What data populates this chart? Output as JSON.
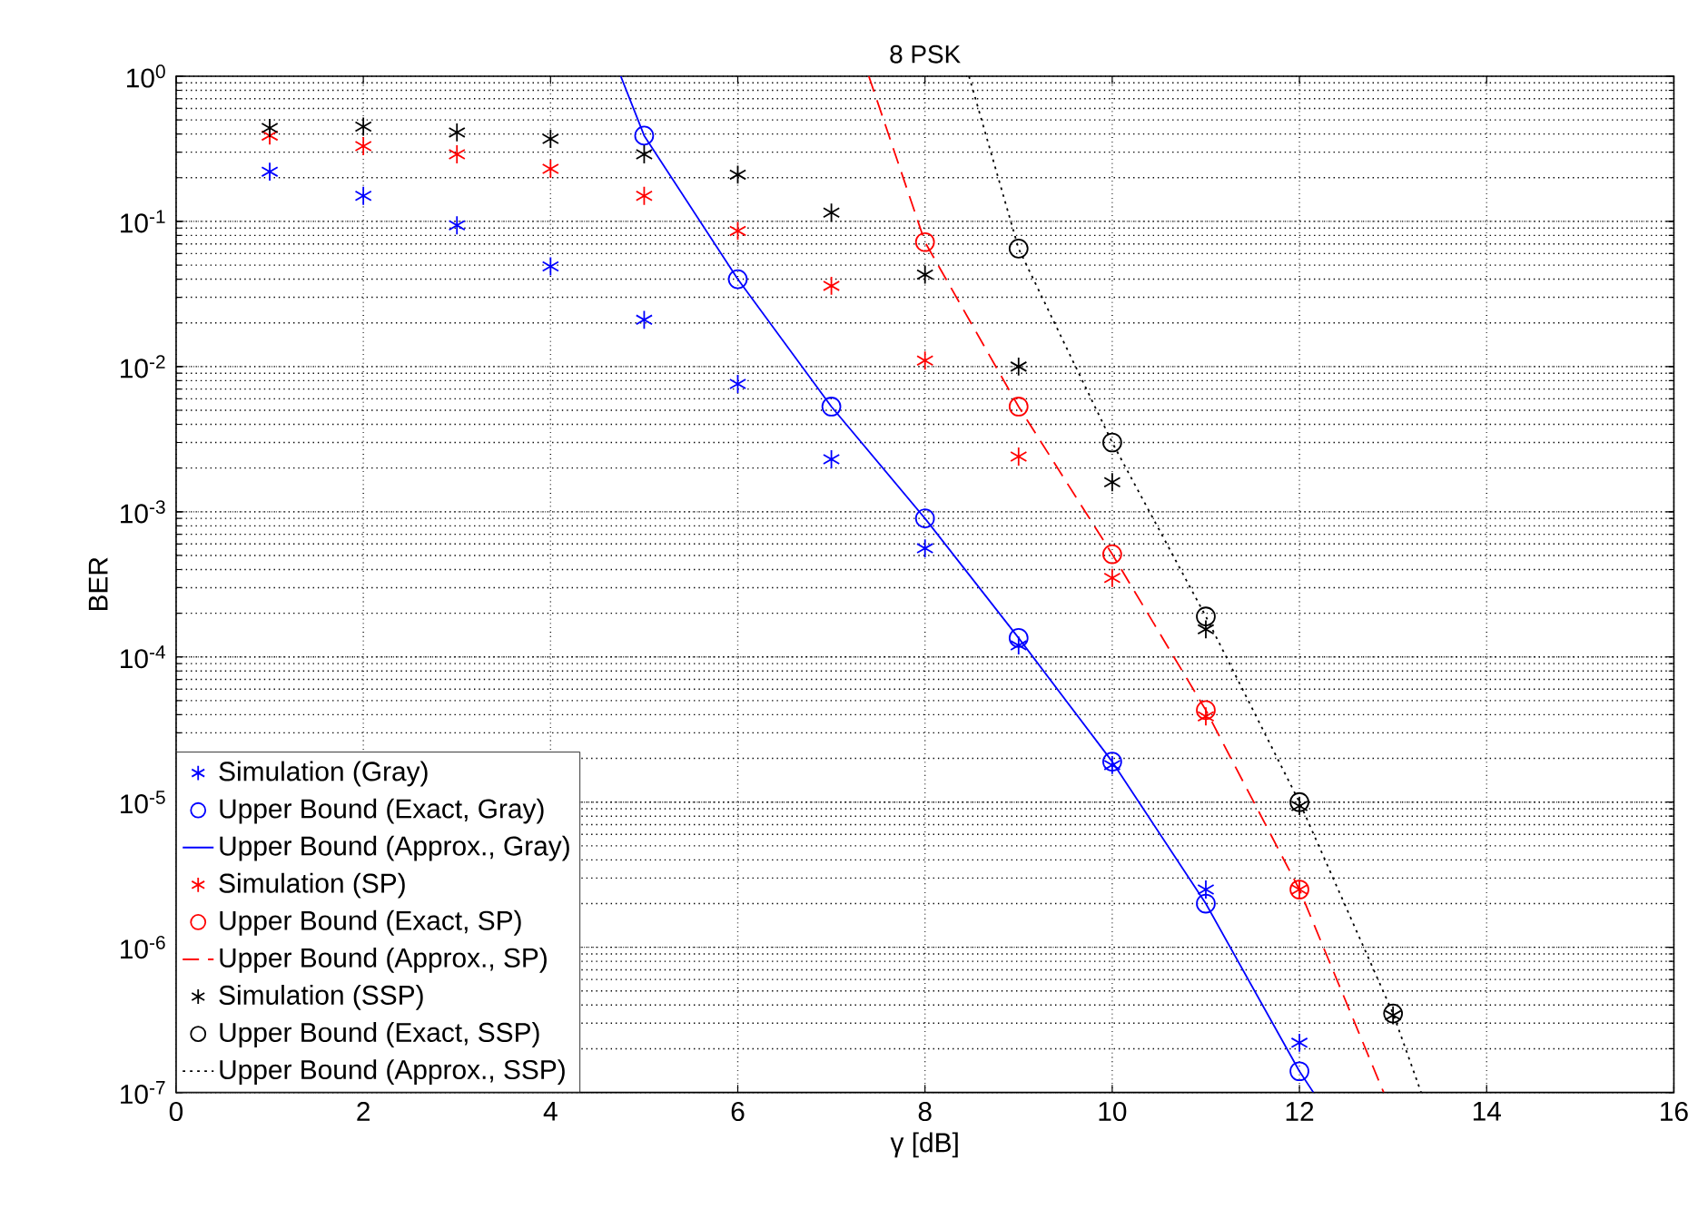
{
  "chart_data": {
    "type": "scatter",
    "title": "8 PSK",
    "xlabel": "γ [dB]",
    "ylabel": "BER",
    "log": "y",
    "grid": true,
    "legend": "bottom left",
    "xlim": [
      0,
      16
    ],
    "xticks": [
      0,
      2,
      4,
      6,
      8,
      10,
      12,
      14,
      16
    ],
    "ylim": [
      1e-07,
      1
    ],
    "yticks": [
      {
        "value": 1e-07,
        "label": "10$^{-7}$"
      },
      {
        "value": 1e-06,
        "label": "10$^{-6}$"
      },
      {
        "value": 1e-05,
        "label": "10$^{-5}$"
      },
      {
        "value": 0.0001,
        "label": "10$^{-4}$"
      },
      {
        "value": 0.001,
        "label": "10$^{-3}$"
      },
      {
        "value": 0.01,
        "label": "10$^{-2}$"
      },
      {
        "value": 0.1,
        "label": "10$^{-1}$"
      },
      {
        "value": 1,
        "label": "10$^{0}$"
      }
    ],
    "series": [
      {
        "name": "Simulation (Gray)",
        "type": "scatter",
        "marker": "cross",
        "color": "#0000ff",
        "x": [
          1,
          2,
          3,
          4,
          5,
          6,
          7,
          8,
          9,
          10,
          11,
          12
        ],
        "values": [
          0.22,
          0.15,
          0.094,
          0.049,
          0.021,
          0.0076,
          0.0023,
          0.00056,
          0.00012,
          1.8e-05,
          2.5e-06,
          2.2e-07
        ]
      },
      {
        "name": "Upper Bound (Exact, Gray)",
        "type": "scatter",
        "marker": "circle",
        "color": "#0000ff",
        "x": [
          5,
          6,
          7,
          8,
          9,
          10,
          11,
          12
        ],
        "values": [
          0.39,
          0.04,
          0.0053,
          0.0009,
          0.000135,
          1.9e-05,
          2e-06,
          1.4e-07
        ]
      },
      {
        "name": "Upper Bound (Approx., Gray)",
        "type": "line",
        "marker": "none",
        "line_style": "solid",
        "color": "#0000ff",
        "x": [
          4.75,
          5,
          6,
          7,
          8,
          9,
          10,
          11,
          12,
          12.15
        ],
        "values": [
          1,
          0.39,
          0.04,
          0.0053,
          0.0009,
          0.000135,
          1.9e-05,
          2e-06,
          1.4e-07,
          1e-07
        ]
      },
      {
        "name": "Simulation (SP)",
        "type": "scatter",
        "marker": "cross",
        "color": "#ff0000",
        "x": [
          1,
          2,
          3,
          4,
          5,
          6,
          7,
          8,
          9,
          10,
          11,
          12
        ],
        "values": [
          0.39,
          0.33,
          0.29,
          0.23,
          0.15,
          0.086,
          0.036,
          0.011,
          0.0024,
          0.00035,
          3.9e-05,
          2.5e-06
        ]
      },
      {
        "name": "Upper Bound (Exact, SP)",
        "type": "scatter",
        "marker": "circle",
        "color": "#ff0000",
        "x": [
          8,
          9,
          10,
          11,
          12
        ],
        "values": [
          0.072,
          0.0053,
          0.00051,
          4.3e-05,
          2.5e-06
        ]
      },
      {
        "name": "Upper Bound (Approx., SP)",
        "type": "line",
        "marker": "none",
        "line_style": "dashed",
        "color": "#ff0000",
        "x": [
          7.4,
          8,
          9,
          10,
          11,
          12,
          12.9
        ],
        "values": [
          1,
          0.072,
          0.0053,
          0.00051,
          4.3e-05,
          2.5e-06,
          1e-07
        ]
      },
      {
        "name": "Simulation (SSP)",
        "type": "scatter",
        "marker": "cross",
        "color": "#000000",
        "x": [
          1,
          2,
          3,
          4,
          5,
          6,
          7,
          8,
          9,
          10,
          11,
          12,
          13
        ],
        "values": [
          0.44,
          0.45,
          0.41,
          0.37,
          0.29,
          0.21,
          0.115,
          0.043,
          0.01,
          0.0016,
          0.000155,
          9.4e-06,
          3.4e-07
        ]
      },
      {
        "name": "Upper Bound (Exact, SSP)",
        "type": "scatter",
        "marker": "circle",
        "color": "#000000",
        "x": [
          9,
          10,
          11,
          12,
          13
        ],
        "values": [
          0.065,
          0.003,
          0.00019,
          1e-05,
          3.5e-07
        ]
      },
      {
        "name": "Upper Bound (Approx., SSP)",
        "type": "line",
        "marker": "none",
        "line_style": "dotted",
        "color": "#000000",
        "x": [
          8.47,
          9,
          10,
          11,
          12,
          13,
          13.3
        ],
        "values": [
          1,
          0.065,
          0.003,
          0.00019,
          1e-05,
          3.5e-07,
          1e-07
        ]
      }
    ]
  }
}
